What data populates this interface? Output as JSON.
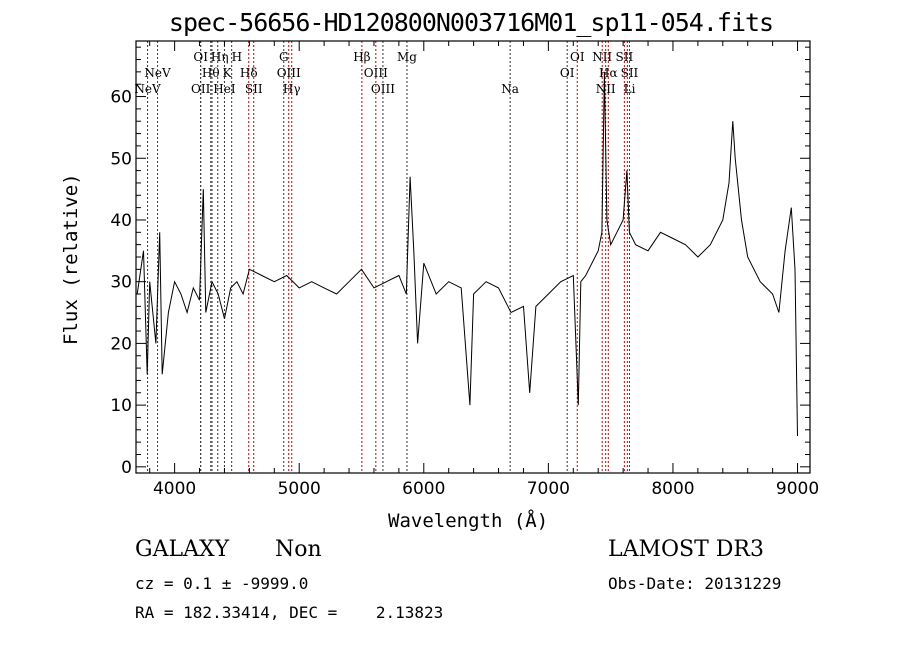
{
  "chart_data": {
    "type": "line",
    "title": "spec-56656-HD120800N003716M01_sp11-054.fits",
    "xlabel": "Wavelength (Å)",
    "ylabel": "Flux (relative)",
    "xlim": [
      3690,
      9100
    ],
    "ylim": [
      -1,
      69
    ],
    "xticks": [
      4000,
      5000,
      6000,
      7000,
      8000,
      9000
    ],
    "yticks": [
      0,
      10,
      20,
      30,
      40,
      50,
      60
    ],
    "grid": false,
    "series": [
      {
        "name": "flux",
        "x": [
          3700,
          3750,
          3780,
          3800,
          3850,
          3880,
          3900,
          3950,
          4000,
          4050,
          4100,
          4150,
          4200,
          4230,
          4250,
          4300,
          4350,
          4400,
          4450,
          4500,
          4550,
          4600,
          4700,
          4800,
          4900,
          5000,
          5100,
          5200,
          5300,
          5400,
          5500,
          5600,
          5700,
          5800,
          5860,
          5890,
          5920,
          5950,
          6000,
          6100,
          6200,
          6300,
          6370,
          6400,
          6500,
          6600,
          6700,
          6800,
          6850,
          6900,
          7000,
          7100,
          7200,
          7240,
          7260,
          7300,
          7400,
          7430,
          7450,
          7470,
          7500,
          7550,
          7600,
          7630,
          7650,
          7700,
          7800,
          7900,
          8000,
          8100,
          8200,
          8300,
          8400,
          8450,
          8480,
          8500,
          8550,
          8600,
          8700,
          8800,
          8850,
          8900,
          8950,
          8980,
          9000
        ],
        "y": [
          28,
          35,
          15,
          30,
          20,
          38,
          15,
          25,
          30,
          28,
          25,
          29,
          27,
          45,
          25,
          30,
          28,
          24,
          29,
          30,
          28,
          32,
          31,
          30,
          31,
          29,
          30,
          29,
          28,
          30,
          32,
          29,
          30,
          31,
          28,
          47,
          35,
          20,
          33,
          28,
          30,
          29,
          10,
          28,
          30,
          29,
          25,
          26,
          12,
          26,
          28,
          30,
          31,
          10,
          30,
          31,
          35,
          38,
          64,
          40,
          36,
          38,
          40,
          48,
          38,
          36,
          35,
          38,
          37,
          36,
          34,
          36,
          40,
          46,
          56,
          50,
          40,
          34,
          30,
          28,
          25,
          35,
          42,
          32,
          5
        ]
      }
    ],
    "lines": [
      {
        "label": "NeV",
        "wavelength": 3783,
        "color": "black",
        "row": 2
      },
      {
        "label": "NeV",
        "wavelength": 3863,
        "color": "red",
        "row": 1
      },
      {
        "label": "OII",
        "wavelength": 4209,
        "color": "black",
        "row": 2
      },
      {
        "label": "OI",
        "wavelength": 4209,
        "color": "black",
        "row": 0
      },
      {
        "label": "Hθ",
        "wavelength": 4290,
        "color": "black",
        "row": 1
      },
      {
        "label": "Hη",
        "wavelength": 4300,
        "color": "black",
        "row": 0
      },
      {
        "label": "HeI",
        "wavelength": 4346,
        "color": "black",
        "row": 2
      },
      {
        "label": "K",
        "wavelength": 4400,
        "color": "black",
        "row": 1
      },
      {
        "label": "H",
        "wavelength": 4458,
        "color": "black",
        "row": 0
      },
      {
        "label": "Hδ",
        "wavelength": 4595,
        "color": "red",
        "row": 1
      },
      {
        "label": "SII",
        "wavelength": 4635,
        "color": "red",
        "row": 2
      },
      {
        "label": "G",
        "wavelength": 4876,
        "color": "black",
        "row": 0
      },
      {
        "label": "OIII",
        "wavelength": 4916,
        "color": "red",
        "row": 1
      },
      {
        "label": "Hγ",
        "wavelength": 4940,
        "color": "red",
        "row": 2
      },
      {
        "label": "Hβ",
        "wavelength": 5503,
        "color": "red",
        "row": 0
      },
      {
        "label": "OIII",
        "wavelength": 5615,
        "color": "red",
        "row": 1
      },
      {
        "label": "OIII",
        "wavelength": 5672,
        "color": "black",
        "row": 2
      },
      {
        "label": "Mg",
        "wavelength": 5865,
        "color": "black",
        "row": 0
      },
      {
        "label": "Na",
        "wavelength": 6693,
        "color": "black",
        "row": 2
      },
      {
        "label": "OI",
        "wavelength": 7151,
        "color": "black",
        "row": 1
      },
      {
        "label": "OI",
        "wavelength": 7232,
        "color": "red",
        "row": 0
      },
      {
        "label": "NII",
        "wavelength": 7432,
        "color": "red",
        "row": 0
      },
      {
        "label": "Hα",
        "wavelength": 7481,
        "color": "red",
        "row": 1
      },
      {
        "label": "NII",
        "wavelength": 7460,
        "color": "red",
        "row": 2
      },
      {
        "label": "SII",
        "wavelength": 7610,
        "color": "red",
        "row": 0
      },
      {
        "label": "SII",
        "wavelength": 7634,
        "color": "red",
        "row": 1
      },
      {
        "label": "Li",
        "wavelength": 7651,
        "color": "red",
        "row": 2
      }
    ]
  },
  "info": {
    "class": "GALAXY",
    "subclass": "Non",
    "cz": "cz = 0.1 ± -9999.0",
    "radec": "RA = 182.33414, DEC =    2.13823",
    "survey": "LAMOST DR3",
    "obsdate": "Obs-Date: 20131229"
  }
}
